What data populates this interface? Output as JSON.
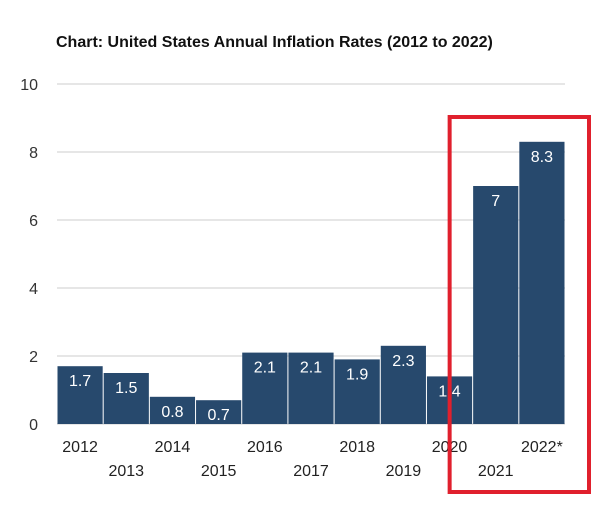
{
  "title": "Chart: United States Annual Inflation Rates (2012 to 2022)",
  "colors": {
    "bar": "#27496d",
    "grid": "#cccccc",
    "highlight": "#e0202d"
  },
  "chart_data": {
    "type": "bar",
    "title": "Chart: United States Annual Inflation Rates (2012 to 2022)",
    "xlabel": "",
    "ylabel": "",
    "ylim": [
      0,
      10
    ],
    "yticks": [
      0,
      2,
      4,
      6,
      8,
      10
    ],
    "grid": true,
    "categories": [
      "2012",
      "2013",
      "2014",
      "2015",
      "2016",
      "2017",
      "2018",
      "2019",
      "2020",
      "2021",
      "2022*"
    ],
    "values": [
      1.7,
      1.5,
      0.8,
      0.7,
      2.1,
      2.1,
      1.9,
      2.3,
      1.4,
      7,
      8.3
    ],
    "value_labels": [
      "1.7",
      "1.5",
      "0.8",
      "0.7",
      "2.1",
      "2.1",
      "1.9",
      "2.3",
      "1.4",
      "7",
      "8.3"
    ],
    "highlighted_categories": [
      "2021",
      "2022*"
    ]
  }
}
